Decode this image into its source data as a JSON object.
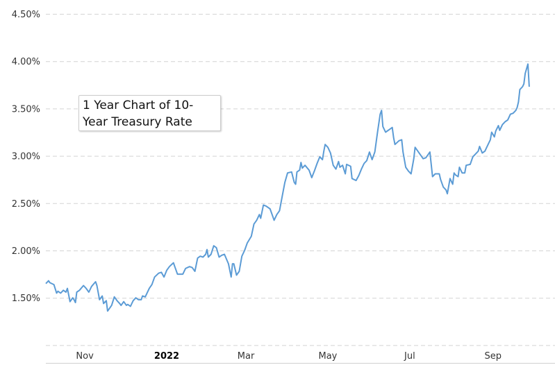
{
  "chart_data": {
    "type": "line",
    "title": "1 Year Chart of 10-Year Treasury Rate",
    "title_lines": [
      "1 Year Chart of 10-",
      "Year Treasury Rate"
    ],
    "xlabel": "",
    "ylabel": "",
    "ylim": [
      1.0,
      4.5
    ],
    "y_ticks": [
      {
        "value": 1.5,
        "label": "1.50%"
      },
      {
        "value": 2.0,
        "label": "2.00%"
      },
      {
        "value": 2.5,
        "label": "2.50%"
      },
      {
        "value": 3.0,
        "label": "3.00%"
      },
      {
        "value": 3.5,
        "label": "3.50%"
      },
      {
        "value": 4.0,
        "label": "4.00%"
      },
      {
        "value": 4.5,
        "label": "4.50%"
      }
    ],
    "x_ticks": [
      {
        "date": "2021-11-01",
        "label": "Nov",
        "bold": false
      },
      {
        "date": "2022-01-01",
        "label": "2022",
        "bold": true
      },
      {
        "date": "2022-03-01",
        "label": "Mar",
        "bold": false
      },
      {
        "date": "2022-05-01",
        "label": "May",
        "bold": false
      },
      {
        "date": "2022-07-01",
        "label": "Jul",
        "bold": false
      },
      {
        "date": "2022-09-01",
        "label": "Sep",
        "bold": false
      }
    ],
    "grid": "horizontal dashed",
    "line_color": "#5b9bd5",
    "series": [
      {
        "points": [
          [
            "2021-10-03",
            1.65
          ],
          [
            "2021-10-05",
            1.68
          ],
          [
            "2021-10-06",
            1.66
          ],
          [
            "2021-10-09",
            1.64
          ],
          [
            "2021-10-11",
            1.55
          ],
          [
            "2021-10-12",
            1.57
          ],
          [
            "2021-10-14",
            1.55
          ],
          [
            "2021-10-16",
            1.58
          ],
          [
            "2021-10-18",
            1.56
          ],
          [
            "2021-10-19",
            1.6
          ],
          [
            "2021-10-21",
            1.46
          ],
          [
            "2021-10-23",
            1.5
          ],
          [
            "2021-10-24",
            1.48
          ],
          [
            "2021-10-25",
            1.45
          ],
          [
            "2021-10-26",
            1.56
          ],
          [
            "2021-10-28",
            1.58
          ],
          [
            "2021-10-31",
            1.63
          ],
          [
            "2021-11-02",
            1.6
          ],
          [
            "2021-11-04",
            1.56
          ],
          [
            "2021-11-06",
            1.62
          ],
          [
            "2021-11-09",
            1.67
          ],
          [
            "2021-11-10",
            1.63
          ],
          [
            "2021-11-12",
            1.48
          ],
          [
            "2021-11-14",
            1.52
          ],
          [
            "2021-11-15",
            1.44
          ],
          [
            "2021-11-17",
            1.47
          ],
          [
            "2021-11-18",
            1.36
          ],
          [
            "2021-11-21",
            1.42
          ],
          [
            "2021-11-23",
            1.51
          ],
          [
            "2021-11-25",
            1.47
          ],
          [
            "2021-11-27",
            1.44
          ],
          [
            "2021-11-28",
            1.42
          ],
          [
            "2021-11-30",
            1.46
          ],
          [
            "2021-12-02",
            1.42
          ],
          [
            "2021-12-03",
            1.43
          ],
          [
            "2021-12-05",
            1.41
          ],
          [
            "2021-12-07",
            1.47
          ],
          [
            "2021-12-09",
            1.5
          ],
          [
            "2021-12-11",
            1.48
          ],
          [
            "2021-12-13",
            1.48
          ],
          [
            "2021-12-14",
            1.52
          ],
          [
            "2021-12-16",
            1.51
          ],
          [
            "2021-12-19",
            1.6
          ],
          [
            "2021-12-21",
            1.64
          ],
          [
            "2021-12-23",
            1.72
          ],
          [
            "2021-12-26",
            1.76
          ],
          [
            "2021-12-28",
            1.77
          ],
          [
            "2021-12-30",
            1.72
          ],
          [
            "2022-01-01",
            1.79
          ],
          [
            "2022-01-03",
            1.83
          ],
          [
            "2022-01-06",
            1.87
          ],
          [
            "2022-01-07",
            1.83
          ],
          [
            "2022-01-09",
            1.75
          ],
          [
            "2022-01-11",
            1.75
          ],
          [
            "2022-01-13",
            1.75
          ],
          [
            "2022-01-15",
            1.81
          ],
          [
            "2022-01-18",
            1.83
          ],
          [
            "2022-01-20",
            1.82
          ],
          [
            "2022-01-22",
            1.78
          ],
          [
            "2022-01-24",
            1.92
          ],
          [
            "2022-01-26",
            1.94
          ],
          [
            "2022-01-28",
            1.93
          ],
          [
            "2022-01-30",
            1.96
          ],
          [
            "2022-01-31",
            2.01
          ],
          [
            "2022-02-01",
            1.93
          ],
          [
            "2022-02-03",
            1.96
          ],
          [
            "2022-02-05",
            2.05
          ],
          [
            "2022-02-07",
            2.03
          ],
          [
            "2022-02-09",
            1.93
          ],
          [
            "2022-02-11",
            1.95
          ],
          [
            "2022-02-13",
            1.96
          ],
          [
            "2022-02-16",
            1.86
          ],
          [
            "2022-02-18",
            1.72
          ],
          [
            "2022-02-19",
            1.86
          ],
          [
            "2022-02-20",
            1.86
          ],
          [
            "2022-02-22",
            1.74
          ],
          [
            "2022-02-24",
            1.78
          ],
          [
            "2022-02-26",
            1.94
          ],
          [
            "2022-02-28",
            2.0
          ],
          [
            "2022-03-02",
            2.08
          ],
          [
            "2022-03-05",
            2.15
          ],
          [
            "2022-03-07",
            2.28
          ],
          [
            "2022-03-09",
            2.32
          ],
          [
            "2022-03-11",
            2.38
          ],
          [
            "2022-03-12",
            2.34
          ],
          [
            "2022-03-14",
            2.48
          ],
          [
            "2022-03-16",
            2.47
          ],
          [
            "2022-03-19",
            2.44
          ],
          [
            "2022-03-21",
            2.36
          ],
          [
            "2022-03-22",
            2.32
          ],
          [
            "2022-03-24",
            2.38
          ],
          [
            "2022-03-26",
            2.42
          ],
          [
            "2022-03-28",
            2.57
          ],
          [
            "2022-03-30",
            2.72
          ],
          [
            "2022-04-01",
            2.82
          ],
          [
            "2022-04-04",
            2.83
          ],
          [
            "2022-04-06",
            2.72
          ],
          [
            "2022-04-07",
            2.7
          ],
          [
            "2022-04-08",
            2.83
          ],
          [
            "2022-04-10",
            2.85
          ],
          [
            "2022-04-11",
            2.93
          ],
          [
            "2022-04-12",
            2.87
          ],
          [
            "2022-04-14",
            2.9
          ],
          [
            "2022-04-17",
            2.85
          ],
          [
            "2022-04-19",
            2.77
          ],
          [
            "2022-04-21",
            2.84
          ],
          [
            "2022-04-23",
            2.92
          ],
          [
            "2022-04-25",
            2.99
          ],
          [
            "2022-04-27",
            2.96
          ],
          [
            "2022-04-28",
            3.05
          ],
          [
            "2022-04-29",
            3.12
          ],
          [
            "2022-05-01",
            3.09
          ],
          [
            "2022-05-03",
            3.03
          ],
          [
            "2022-05-05",
            2.9
          ],
          [
            "2022-05-07",
            2.86
          ],
          [
            "2022-05-09",
            2.94
          ],
          [
            "2022-05-10",
            2.88
          ],
          [
            "2022-05-12",
            2.9
          ],
          [
            "2022-05-14",
            2.81
          ],
          [
            "2022-05-15",
            2.91
          ],
          [
            "2022-05-18",
            2.89
          ],
          [
            "2022-05-19",
            2.76
          ],
          [
            "2022-05-22",
            2.74
          ],
          [
            "2022-05-24",
            2.79
          ],
          [
            "2022-05-26",
            2.86
          ],
          [
            "2022-05-28",
            2.92
          ],
          [
            "2022-05-30",
            2.95
          ],
          [
            "2022-06-01",
            3.04
          ],
          [
            "2022-06-03",
            2.96
          ],
          [
            "2022-06-05",
            3.04
          ],
          [
            "2022-06-07",
            3.25
          ],
          [
            "2022-06-09",
            3.44
          ],
          [
            "2022-06-10",
            3.48
          ],
          [
            "2022-06-11",
            3.31
          ],
          [
            "2022-06-13",
            3.25
          ],
          [
            "2022-06-16",
            3.28
          ],
          [
            "2022-06-18",
            3.3
          ],
          [
            "2022-06-19",
            3.19
          ],
          [
            "2022-06-20",
            3.12
          ],
          [
            "2022-06-23",
            3.16
          ],
          [
            "2022-06-25",
            3.17
          ],
          [
            "2022-06-26",
            3.04
          ],
          [
            "2022-06-28",
            2.88
          ],
          [
            "2022-06-30",
            2.84
          ],
          [
            "2022-07-02",
            2.81
          ],
          [
            "2022-07-04",
            2.97
          ],
          [
            "2022-07-05",
            3.09
          ],
          [
            "2022-07-07",
            3.05
          ],
          [
            "2022-07-09",
            3.01
          ],
          [
            "2022-07-11",
            2.97
          ],
          [
            "2022-07-13",
            2.98
          ],
          [
            "2022-07-16",
            3.04
          ],
          [
            "2022-07-18",
            2.78
          ],
          [
            "2022-07-20",
            2.81
          ],
          [
            "2022-07-23",
            2.81
          ],
          [
            "2022-07-24",
            2.75
          ],
          [
            "2022-07-26",
            2.67
          ],
          [
            "2022-07-28",
            2.64
          ],
          [
            "2022-07-29",
            2.6
          ],
          [
            "2022-07-31",
            2.76
          ],
          [
            "2022-08-02",
            2.7
          ],
          [
            "2022-08-03",
            2.82
          ],
          [
            "2022-08-04",
            2.8
          ],
          [
            "2022-08-06",
            2.78
          ],
          [
            "2022-08-07",
            2.88
          ],
          [
            "2022-08-09",
            2.82
          ],
          [
            "2022-08-11",
            2.82
          ],
          [
            "2022-08-12",
            2.9
          ],
          [
            "2022-08-15",
            2.91
          ],
          [
            "2022-08-17",
            2.99
          ],
          [
            "2022-08-19",
            3.02
          ],
          [
            "2022-08-21",
            3.05
          ],
          [
            "2022-08-22",
            3.1
          ],
          [
            "2022-08-24",
            3.03
          ],
          [
            "2022-08-26",
            3.05
          ],
          [
            "2022-08-28",
            3.11
          ],
          [
            "2022-08-30",
            3.17
          ],
          [
            "2022-08-31",
            3.25
          ],
          [
            "2022-09-02",
            3.2
          ],
          [
            "2022-09-03",
            3.26
          ],
          [
            "2022-09-05",
            3.32
          ],
          [
            "2022-09-06",
            3.27
          ],
          [
            "2022-09-08",
            3.33
          ],
          [
            "2022-09-10",
            3.36
          ],
          [
            "2022-09-12",
            3.38
          ],
          [
            "2022-09-14",
            3.44
          ],
          [
            "2022-09-16",
            3.45
          ],
          [
            "2022-09-18",
            3.48
          ],
          [
            "2022-09-19",
            3.51
          ],
          [
            "2022-09-20",
            3.57
          ],
          [
            "2022-09-21",
            3.7
          ],
          [
            "2022-09-23",
            3.73
          ],
          [
            "2022-09-24",
            3.76
          ],
          [
            "2022-09-25",
            3.87
          ],
          [
            "2022-09-27",
            3.97
          ],
          [
            "2022-09-28",
            3.73
          ]
        ]
      }
    ]
  }
}
